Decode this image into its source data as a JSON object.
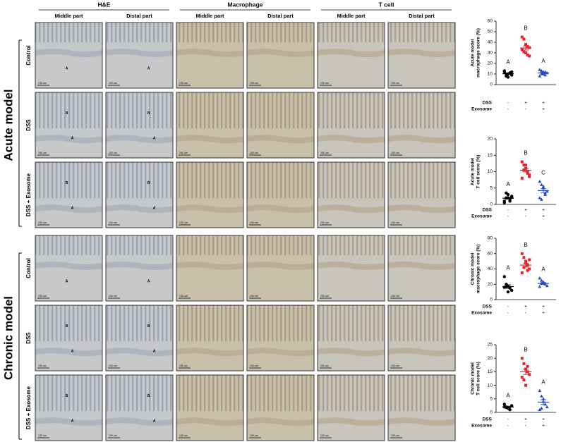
{
  "histology": {
    "groups": [
      {
        "title": "H&E",
        "columns": [
          "Middle part",
          "Distal part"
        ],
        "color": "#c6c8c9"
      },
      {
        "title": "Macrophage",
        "columns": [
          "Middle part",
          "Distal part"
        ],
        "color": "#c9c0ac"
      },
      {
        "title": "T cell",
        "columns": [
          "Middle part",
          "Distal part"
        ],
        "color": "#c8c5bc"
      }
    ],
    "models": [
      {
        "title": "Acute model",
        "rows": [
          "Control",
          "DSS",
          "DSS + Exosome"
        ]
      },
      {
        "title": "Chronic model",
        "rows": [
          "Control",
          "DSS",
          "DSS + Exosome"
        ]
      }
    ],
    "scale_bar": "100 um",
    "he_labels": [
      [
        [
          "A"
        ],
        [
          "A"
        ]
      ],
      [
        [
          "B",
          "A"
        ],
        [
          "B",
          "A"
        ]
      ],
      [
        [
          "B",
          "A"
        ],
        [
          "B",
          "A"
        ]
      ],
      [
        [
          "A"
        ],
        [
          "A"
        ]
      ],
      [
        [
          "B",
          "A"
        ],
        [
          "B",
          "A"
        ]
      ],
      [
        [
          "B",
          "A"
        ],
        [
          "B",
          "A"
        ]
      ]
    ]
  },
  "chart_data": [
    {
      "type": "dot",
      "ylabel": [
        "Acute model",
        "macrophage score (%)"
      ],
      "ylim": [
        0,
        60
      ],
      "yticks": [
        0,
        10,
        20,
        30,
        40,
        50,
        60
      ],
      "conditions": [
        {
          "label": "DSS",
          "signs": [
            "-",
            "+",
            "+"
          ]
        },
        {
          "label": "Exosome",
          "signs": [
            "-",
            "-",
            "+"
          ]
        }
      ],
      "letters": [
        "A",
        "B",
        "A"
      ],
      "series": [
        {
          "color": "#000000",
          "marker": "circle",
          "values": [
            12,
            8,
            10,
            11,
            9,
            13,
            10,
            7,
            11,
            12
          ]
        },
        {
          "color": "#e8202a",
          "marker": "square",
          "values": [
            45,
            43,
            38,
            36,
            35,
            33,
            31,
            30,
            28,
            27
          ]
        },
        {
          "color": "#2548c0",
          "marker": "triangle",
          "values": [
            14,
            10,
            12,
            9,
            11,
            8,
            13,
            10,
            12
          ]
        }
      ],
      "means": [
        10.3,
        34.6,
        11
      ],
      "errors": [
        0.6,
        1.9,
        0.6
      ]
    },
    {
      "type": "dot",
      "ylabel": [
        "Acute model",
        "T cell score (%)"
      ],
      "ylim": [
        0,
        20
      ],
      "yticks": [
        0,
        5,
        10,
        15,
        20
      ],
      "conditions": [
        {
          "label": "DSS",
          "signs": [
            "-",
            "+",
            "+"
          ]
        },
        {
          "label": "Exosome",
          "signs": [
            "-",
            "-",
            "+"
          ]
        }
      ],
      "letters": [
        "A",
        "B",
        "C"
      ],
      "series": [
        {
          "color": "#000000",
          "marker": "circle",
          "values": [
            1,
            2,
            3,
            1.5,
            2.5,
            0.5,
            3.5,
            2,
            1,
            2.2
          ]
        },
        {
          "color": "#e8202a",
          "marker": "square",
          "values": [
            13,
            12,
            11,
            10,
            9,
            8,
            10.5,
            12,
            9.5,
            8.5
          ]
        },
        {
          "color": "#2548c0",
          "marker": "triangle",
          "values": [
            7,
            6,
            5,
            3,
            4,
            2,
            1.5,
            5.5,
            3.5
          ]
        }
      ],
      "means": [
        1.9,
        10.4,
        4.2
      ],
      "errors": [
        0.3,
        0.5,
        0.6
      ]
    },
    {
      "type": "dot",
      "ylabel": [
        "Chronic model",
        "macrophage score (%)"
      ],
      "ylim": [
        0,
        80
      ],
      "yticks": [
        0,
        20,
        40,
        60,
        80
      ],
      "conditions": [
        {
          "label": "DSS",
          "signs": [
            "-",
            "+",
            "+"
          ]
        },
        {
          "label": "Exosome",
          "signs": [
            "-",
            "-",
            "+"
          ]
        }
      ],
      "letters": [
        "A",
        "B",
        "A"
      ],
      "series": [
        {
          "color": "#000000",
          "marker": "circle",
          "values": [
            30,
            20,
            18,
            15,
            12,
            16,
            17,
            10
          ]
        },
        {
          "color": "#e8202a",
          "marker": "square",
          "values": [
            60,
            55,
            50,
            45,
            40,
            35,
            42,
            48,
            38,
            52
          ]
        },
        {
          "color": "#2548c0",
          "marker": "triangle",
          "values": [
            28,
            25,
            22,
            20,
            18,
            17,
            21,
            23
          ]
        }
      ],
      "means": [
        17,
        45,
        21
      ],
      "errors": [
        2.2,
        2.5,
        1.3
      ]
    },
    {
      "type": "dot",
      "ylabel": [
        "Chronic model",
        "T cell score (%)"
      ],
      "ylim": [
        0,
        25
      ],
      "yticks": [
        0,
        5,
        10,
        15,
        20,
        25
      ],
      "conditions": [
        {
          "label": "DSS",
          "signs": [
            "-",
            "+",
            "+"
          ]
        },
        {
          "label": "Exosome",
          "signs": [
            "-",
            "-",
            "+"
          ]
        }
      ],
      "letters": [
        "A",
        "B",
        "A"
      ],
      "series": [
        {
          "color": "#000000",
          "marker": "circle",
          "values": [
            3,
            2,
            1.5,
            1,
            2.5,
            2,
            1.8
          ]
        },
        {
          "color": "#e8202a",
          "marker": "square",
          "values": [
            20,
            18,
            16,
            15,
            14,
            13,
            12,
            10,
            17
          ]
        },
        {
          "color": "#2548c0",
          "marker": "triangle",
          "values": [
            8,
            6,
            5,
            3,
            2,
            1,
            1.5,
            4
          ]
        }
      ],
      "means": [
        2,
        15,
        3.8
      ],
      "errors": [
        0.3,
        1,
        0.9
      ]
    }
  ]
}
